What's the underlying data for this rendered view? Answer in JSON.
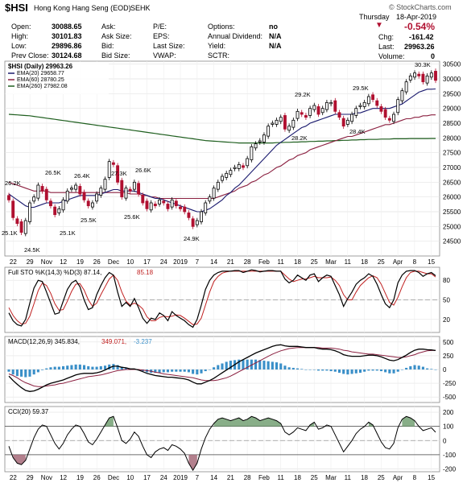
{
  "header": {
    "symbol": "$HSI",
    "name": "Hong Kong Hang Seng (EOD)",
    "exchange": "SEHK",
    "copyright": "© StockCharts.com",
    "day": "Thursday",
    "date": "18-Apr-2019",
    "change_pct": "-0.54%",
    "chg_label": "Chg:",
    "chg_value": "-161.42",
    "last_label": "Last:",
    "last_value": "29963.26",
    "volume_label": "Volume:",
    "volume_value": "0",
    "rows": [
      {
        "l1": "Open:",
        "v1": "30088.65",
        "l2": "Ask:",
        "v2": "",
        "l3": "P/E:",
        "v3": "",
        "l4": "Options:",
        "v4": "no"
      },
      {
        "l1": "High:",
        "v1": "30101.83",
        "l2": "Ask Size:",
        "v2": "",
        "l3": "EPS:",
        "v3": "",
        "l4": "Annual Dividend:",
        "v4": "N/A"
      },
      {
        "l1": "Low:",
        "v1": "29896.86",
        "l2": "Bid:",
        "v2": "",
        "l3": "Last Size:",
        "v3": "",
        "l4": "Yield:",
        "v4": "N/A"
      },
      {
        "l1": "Prev Close:",
        "v1": "30124.68",
        "l2": "Bid Size:",
        "v2": "",
        "l3": "VWAP:",
        "v3": "",
        "l4": "SCTR:",
        "v4": ""
      }
    ]
  },
  "colors": {
    "up": "#000000",
    "down": "#b01030",
    "ema20": "#1a1a6e",
    "ema60": "#8b2040",
    "ema260": "#1f5f1f",
    "macd_hist": "#3a8fc8",
    "cci_fill": "#6a9a6a",
    "cci_neg_fill": "#a06070",
    "sto_fast": "#000000",
    "sto_slow": "#c02020"
  },
  "chart_data": [
    {
      "type": "candlestick",
      "title": "$HSI (Daily) 29963.26",
      "legend": [
        {
          "name": "EMA(20) 29658.77",
          "color": "#1a1a6e"
        },
        {
          "name": "EMA(60) 28780.25",
          "color": "#8b2040"
        },
        {
          "name": "EMA(260) 27982.08",
          "color": "#1f5f1f"
        }
      ],
      "ylim": [
        24000,
        30600
      ],
      "y_ticks": [
        24500,
        25000,
        25500,
        26000,
        26500,
        27000,
        27500,
        28000,
        28500,
        29000,
        29500,
        30000,
        30500
      ],
      "x_ticks": [
        "22",
        "29",
        "Nov",
        "12",
        "19",
        "26",
        "Dec",
        "10",
        "17",
        "24",
        "2019",
        "7",
        "14",
        "21",
        "28",
        "Feb",
        "11",
        "18",
        "25",
        "Mar",
        "11",
        "18",
        "25",
        "Apr",
        "8",
        "15"
      ],
      "annotations": [
        "26.2K",
        "25.1K",
        "24.5K",
        "26.5K",
        "26.4K",
        "25.5K",
        "25.1K",
        "27.3K",
        "26.6K",
        "25.6K",
        "24.9K",
        "29.2K",
        "28.2K",
        "29.5K",
        "28.4K",
        "30.3K"
      ],
      "closes": [
        25900,
        25300,
        25100,
        24800,
        25200,
        25800,
        26000,
        26400,
        26200,
        25900,
        25700,
        25400,
        25600,
        25900,
        26200,
        26300,
        26400,
        26100,
        25900,
        25700,
        25800,
        26100,
        26300,
        26600,
        27200,
        27100,
        26500,
        26000,
        26300,
        26200,
        26500,
        26100,
        25800,
        25600,
        25800,
        25700,
        25900,
        25800,
        25600,
        25900,
        25700,
        25600,
        25500,
        25300,
        25000,
        25200,
        25500,
        25800,
        26000,
        26300,
        26500,
        26700,
        26800,
        26900,
        27000,
        27100,
        27000,
        27300,
        27700,
        27800,
        27900,
        28100,
        28400,
        28500,
        28600,
        28700,
        28300,
        28400,
        28600,
        28900,
        28800,
        28700,
        29000,
        29100,
        28800,
        29000,
        29200,
        29200,
        28900,
        28700,
        28400,
        28600,
        28800,
        29000,
        29100,
        29200,
        29400,
        29300,
        29100,
        28900,
        28700,
        28600,
        28800,
        29300,
        29600,
        29900,
        30100,
        30200,
        30100,
        29900,
        30100,
        30200,
        29950
      ],
      "ema20": [
        26100,
        26000,
        25900,
        25800,
        25700,
        25650,
        25650,
        25700,
        25750,
        25800,
        25800,
        25800,
        25800,
        25850,
        25900,
        25950,
        26000,
        26050,
        26050,
        26050,
        26050,
        26050,
        26100,
        26150,
        26200,
        26250,
        26250,
        26200,
        26200,
        26200,
        26200,
        26150,
        26100,
        26050,
        26000,
        25950,
        25950,
        25900,
        25850,
        25800,
        25750,
        25700,
        25650,
        25600,
        25550,
        25500,
        25500,
        25550,
        25600,
        25700,
        25800,
        25900,
        26050,
        26150,
        26300,
        26400,
        26550,
        26700,
        26850,
        27000,
        27150,
        27300,
        27450,
        27600,
        27750,
        27850,
        27950,
        28050,
        28150,
        28250,
        28350,
        28400,
        28500,
        28550,
        28600,
        28650,
        28700,
        28750,
        28800,
        28800,
        28800,
        28800,
        28800,
        28850,
        28850,
        28900,
        28950,
        29000,
        29000,
        29000,
        29000,
        29000,
        29050,
        29100,
        29150,
        29250,
        29350,
        29450,
        29550,
        29600,
        29650,
        29650,
        29660
      ],
      "ema60": [
        26500,
        26450,
        26400,
        26350,
        26300,
        26250,
        26200,
        26200,
        26200,
        26200,
        26150,
        26150,
        26150,
        26150,
        26150,
        26150,
        26150,
        26150,
        26150,
        26150,
        26150,
        26150,
        26150,
        26150,
        26150,
        26150,
        26150,
        26150,
        26150,
        26100,
        26100,
        26100,
        26050,
        26050,
        26000,
        26000,
        25950,
        25950,
        25950,
        25950,
        25950,
        25950,
        25950,
        25950,
        25950,
        25950,
        25950,
        25950,
        25950,
        25950,
        26000,
        26050,
        26100,
        26150,
        26200,
        26300,
        26350,
        26400,
        26500,
        26550,
        26650,
        26750,
        26800,
        26900,
        27000,
        27050,
        27150,
        27250,
        27300,
        27400,
        27450,
        27500,
        27600,
        27650,
        27700,
        27750,
        27800,
        27850,
        27900,
        27950,
        28000,
        28050,
        28050,
        28100,
        28150,
        28200,
        28250,
        28300,
        28350,
        28400,
        28450,
        28450,
        28500,
        28550,
        28600,
        28650,
        28650,
        28700,
        28700,
        28750,
        28750,
        28780,
        28780
      ],
      "ema260": [
        28800,
        28790,
        28780,
        28770,
        28760,
        28750,
        28730,
        28710,
        28690,
        28670,
        28650,
        28630,
        28610,
        28590,
        28570,
        28550,
        28530,
        28510,
        28490,
        28470,
        28450,
        28430,
        28410,
        28390,
        28370,
        28350,
        28330,
        28310,
        28290,
        28270,
        28250,
        28230,
        28210,
        28190,
        28170,
        28150,
        28130,
        28110,
        28090,
        28070,
        28050,
        28030,
        28010,
        27990,
        27970,
        27950,
        27930,
        27910,
        27900,
        27890,
        27880,
        27870,
        27860,
        27850,
        27840,
        27830,
        27830,
        27830,
        27830,
        27830,
        27830,
        27830,
        27830,
        27830,
        27840,
        27840,
        27850,
        27850,
        27860,
        27860,
        27870,
        27870,
        27880,
        27880,
        27890,
        27890,
        27900,
        27900,
        27910,
        27910,
        27920,
        27920,
        27930,
        27930,
        27940,
        27940,
        27950,
        27950,
        27950,
        27960,
        27960,
        27960,
        27970,
        27970,
        27970,
        27970,
        27980,
        27980,
        27980,
        27980,
        27980,
        27982,
        27982
      ]
    },
    {
      "type": "line",
      "title": "Full STO %K(14,3) %D(3) 87.14, 85.18",
      "label_k": "Full STO %K(14,3) %D(3) 87.14,",
      "label_d": "85.18",
      "ylim": [
        0,
        100
      ],
      "y_ticks": [
        20,
        50,
        80
      ],
      "k": [
        30,
        18,
        12,
        10,
        20,
        45,
        68,
        80,
        78,
        62,
        45,
        28,
        30,
        48,
        66,
        76,
        80,
        70,
        50,
        35,
        38,
        58,
        72,
        84,
        92,
        88,
        62,
        40,
        46,
        40,
        52,
        38,
        22,
        14,
        22,
        20,
        30,
        26,
        18,
        32,
        26,
        22,
        18,
        12,
        8,
        20,
        42,
        66,
        80,
        88,
        92,
        94,
        94,
        94,
        95,
        95,
        92,
        94,
        96,
        95,
        93,
        94,
        95,
        95,
        94,
        94,
        82,
        76,
        80,
        88,
        84,
        80,
        88,
        90,
        78,
        84,
        88,
        86,
        72,
        58,
        40,
        52,
        62,
        74,
        80,
        84,
        90,
        86,
        74,
        58,
        44,
        38,
        50,
        76,
        88,
        94,
        95,
        95,
        92,
        86,
        90,
        92,
        87
      ],
      "d": [
        38,
        26,
        18,
        13,
        14,
        25,
        44,
        64,
        76,
        72,
        60,
        44,
        34,
        35,
        48,
        63,
        74,
        75,
        65,
        50,
        40,
        45,
        58,
        70,
        82,
        88,
        80,
        62,
        48,
        42,
        45,
        42,
        36,
        24,
        18,
        18,
        23,
        25,
        24,
        25,
        27,
        26,
        22,
        17,
        12,
        13,
        22,
        42,
        62,
        78,
        86,
        91,
        93,
        94,
        94,
        94,
        94,
        94,
        94,
        94,
        94,
        94,
        94,
        94,
        94,
        94,
        88,
        82,
        78,
        80,
        82,
        82,
        84,
        86,
        84,
        84,
        84,
        85,
        80,
        72,
        58,
        50,
        50,
        62,
        72,
        78,
        84,
        87,
        84,
        74,
        60,
        46,
        42,
        54,
        70,
        84,
        92,
        94,
        94,
        92,
        90,
        90,
        85
      ]
    },
    {
      "type": "line",
      "title": "MACD(12,26,9) 345.834, 349.071, -3.237",
      "label_macd": "MACD(12,26,9) 345.834,",
      "label_signal": "349.071,",
      "label_hist": "-3.237",
      "ylim": [
        -600,
        600
      ],
      "y_ticks": [
        -500,
        -250,
        0,
        250,
        500
      ],
      "macd": [
        -120,
        -200,
        -270,
        -330,
        -380,
        -400,
        -390,
        -360,
        -320,
        -280,
        -250,
        -230,
        -210,
        -190,
        -160,
        -130,
        -100,
        -80,
        -70,
        -70,
        -70,
        -60,
        -40,
        -10,
        30,
        60,
        60,
        40,
        30,
        10,
        10,
        -10,
        -40,
        -70,
        -90,
        -110,
        -120,
        -130,
        -140,
        -140,
        -150,
        -160,
        -170,
        -190,
        -230,
        -260,
        -260,
        -230,
        -200,
        -160,
        -110,
        -60,
        -10,
        40,
        90,
        140,
        180,
        220,
        260,
        300,
        330,
        360,
        390,
        420,
        440,
        450,
        430,
        420,
        420,
        420,
        410,
        400,
        400,
        400,
        380,
        370,
        370,
        360,
        340,
        310,
        270,
        250,
        240,
        240,
        240,
        250,
        260,
        260,
        250,
        230,
        200,
        170,
        160,
        180,
        220,
        260,
        310,
        350,
        370,
        370,
        360,
        355,
        346
      ],
      "signal": [
        -80,
        -110,
        -150,
        -200,
        -240,
        -270,
        -300,
        -310,
        -310,
        -300,
        -290,
        -280,
        -260,
        -250,
        -230,
        -210,
        -190,
        -170,
        -150,
        -130,
        -120,
        -110,
        -100,
        -80,
        -60,
        -40,
        -20,
        -10,
        0,
        0,
        0,
        0,
        -10,
        -20,
        -30,
        -50,
        -60,
        -80,
        -90,
        -100,
        -110,
        -120,
        -130,
        -140,
        -150,
        -170,
        -190,
        -200,
        -200,
        -200,
        -190,
        -170,
        -150,
        -120,
        -80,
        -40,
        0,
        40,
        80,
        120,
        160,
        200,
        240,
        280,
        310,
        340,
        360,
        380,
        390,
        400,
        400,
        400,
        400,
        400,
        400,
        390,
        390,
        390,
        380,
        370,
        350,
        340,
        320,
        310,
        300,
        290,
        280,
        280,
        270,
        260,
        250,
        240,
        230,
        220,
        220,
        230,
        250,
        270,
        300,
        320,
        340,
        345,
        349
      ]
    },
    {
      "type": "area",
      "title": "CCI(20) 59.37",
      "ylim": [
        -220,
        240
      ],
      "y_ticks": [
        -200,
        -100,
        0,
        100,
        200
      ],
      "values": [
        -40,
        -120,
        -160,
        -170,
        -140,
        -60,
        20,
        80,
        110,
        100,
        40,
        -20,
        -60,
        -20,
        40,
        80,
        110,
        100,
        50,
        -10,
        -30,
        10,
        60,
        110,
        160,
        170,
        90,
        0,
        -20,
        10,
        60,
        30,
        -40,
        -100,
        -120,
        -80,
        -60,
        -50,
        -70,
        -30,
        -40,
        -60,
        -90,
        -160,
        -210,
        -160,
        -60,
        20,
        80,
        120,
        150,
        160,
        150,
        140,
        150,
        160,
        140,
        150,
        170,
        160,
        140,
        150,
        160,
        150,
        140,
        120,
        60,
        40,
        60,
        90,
        80,
        70,
        110,
        130,
        80,
        90,
        110,
        100,
        40,
        -20,
        -80,
        -40,
        0,
        50,
        80,
        100,
        130,
        110,
        50,
        -10,
        -50,
        -60,
        -20,
        90,
        150,
        170,
        160,
        140,
        100,
        70,
        80,
        90,
        59
      ]
    }
  ]
}
